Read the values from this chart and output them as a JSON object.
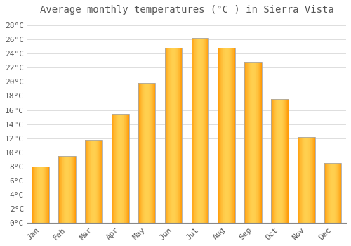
{
  "title": "Average monthly temperatures (°C ) in Sierra Vista",
  "months": [
    "Jan",
    "Feb",
    "Mar",
    "Apr",
    "May",
    "Jun",
    "Jul",
    "Aug",
    "Sep",
    "Oct",
    "Nov",
    "Dec"
  ],
  "values": [
    8.0,
    9.5,
    11.8,
    15.5,
    19.8,
    24.8,
    26.2,
    24.8,
    22.8,
    17.5,
    12.2,
    8.5
  ],
  "bar_color_center": "#FFD060",
  "bar_color_edge": "#FFA500",
  "bar_border_color": "#AAAAAA",
  "background_color": "#FFFFFF",
  "grid_color": "#DDDDDD",
  "text_color": "#555555",
  "ytick_labels": [
    "0°C",
    "2°C",
    "4°C",
    "6°C",
    "8°C",
    "10°C",
    "12°C",
    "14°C",
    "16°C",
    "18°C",
    "20°C",
    "22°C",
    "24°C",
    "26°C",
    "28°C"
  ],
  "ytick_values": [
    0,
    2,
    4,
    6,
    8,
    10,
    12,
    14,
    16,
    18,
    20,
    22,
    24,
    26,
    28
  ],
  "ylim": [
    0,
    29
  ],
  "title_fontsize": 10,
  "tick_fontsize": 8,
  "figsize": [
    5.0,
    3.5
  ],
  "dpi": 100,
  "bar_width": 0.65
}
